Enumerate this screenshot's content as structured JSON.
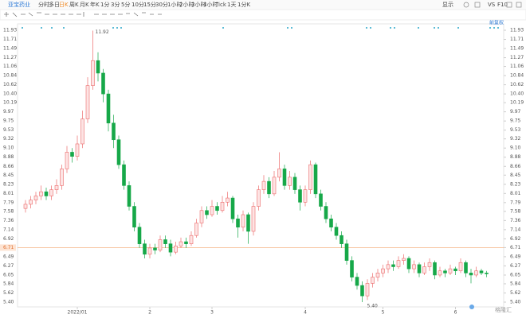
{
  "toolbar": {
    "symbol": "亚宝药业",
    "periods": [
      "分时",
      "多日",
      "日K",
      "周K",
      "月K",
      "年K",
      "1分",
      "3分",
      "5分",
      "10分",
      "15分",
      "30分",
      "1小时",
      "2小时",
      "3小时",
      "4小时",
      "Tick",
      "1天",
      "1分K"
    ],
    "right": [
      "显示",
      "VS",
      "F10"
    ],
    "adjust": "前复权",
    "logo": "格隆汇"
  },
  "chart_data": {
    "type": "candlestick",
    "categories": [
      null,
      null,
      null,
      null,
      null,
      null,
      null,
      null,
      null,
      null,
      "2022/01",
      null,
      null,
      null,
      null,
      null,
      null,
      null,
      null,
      null,
      null,
      null,
      null,
      null,
      "2",
      null,
      null,
      null,
      null,
      null,
      null,
      null,
      null,
      null,
      null,
      null,
      "3",
      null,
      null,
      null,
      null,
      null,
      null,
      null,
      null,
      null,
      null,
      null,
      null,
      null,
      null,
      null,
      null,
      null,
      "4",
      null,
      null,
      null,
      null,
      null,
      null,
      null,
      null,
      null,
      null,
      null,
      null,
      null,
      null,
      "5",
      null,
      null,
      null,
      null,
      null,
      null,
      null,
      null,
      null,
      null,
      null,
      null,
      null,
      "6",
      null,
      null,
      null,
      null,
      null,
      null
    ],
    "open": [
      7.65,
      7.75,
      7.85,
      7.95,
      8.05,
      7.95,
      8.1,
      8.2,
      8.6,
      9.0,
      8.9,
      9.2,
      9.8,
      10.6,
      11.2,
      10.9,
      10.4,
      9.7,
      9.3,
      8.7,
      8.2,
      7.7,
      7.2,
      6.8,
      6.55,
      6.7,
      6.65,
      6.9,
      6.8,
      6.6,
      6.75,
      6.85,
      6.8,
      7.0,
      7.3,
      7.6,
      7.5,
      7.7,
      7.6,
      7.8,
      7.9,
      7.4,
      7.2,
      7.5,
      7.1,
      7.7,
      8.1,
      8.3,
      8.0,
      8.4,
      8.6,
      8.2,
      8.4,
      8.1,
      7.8,
      8.1,
      8.7,
      8.0,
      7.7,
      7.4,
      7.2,
      7.0,
      6.8,
      6.4,
      6.0,
      5.8,
      5.55,
      5.85,
      6.0,
      6.1,
      6.2,
      6.3,
      6.25,
      6.4,
      6.45,
      6.2,
      6.3,
      6.1,
      6.25,
      6.35,
      6.05,
      6.15,
      6.1,
      6.2,
      6.15,
      6.35,
      6.1,
      6.05,
      6.15,
      6.1
    ],
    "high": [
      7.85,
      7.95,
      8.05,
      8.2,
      8.15,
      8.2,
      8.35,
      8.7,
      9.15,
      9.1,
      9.4,
      10.0,
      10.8,
      11.92,
      11.4,
      11.0,
      10.5,
      9.9,
      9.4,
      8.8,
      8.3,
      7.8,
      7.3,
      6.9,
      6.8,
      6.8,
      7.0,
      7.0,
      6.9,
      6.85,
      6.95,
      6.95,
      7.1,
      7.4,
      7.7,
      7.7,
      7.85,
      7.8,
      7.95,
      8.05,
      7.95,
      7.5,
      7.6,
      7.55,
      7.8,
      8.2,
      8.45,
      8.4,
      8.55,
      9.0,
      8.7,
      8.55,
      8.5,
      8.2,
      8.2,
      8.8,
      8.75,
      8.1,
      7.8,
      7.5,
      7.3,
      7.1,
      6.9,
      6.5,
      6.1,
      5.9,
      5.95,
      6.1,
      6.2,
      6.3,
      6.4,
      6.4,
      6.5,
      6.55,
      6.5,
      6.4,
      6.35,
      6.35,
      6.45,
      6.4,
      6.25,
      6.2,
      6.3,
      6.25,
      6.45,
      6.4,
      6.2,
      6.25,
      6.2,
      6.15
    ],
    "low": [
      7.55,
      7.65,
      7.75,
      7.85,
      7.85,
      7.85,
      8.0,
      8.1,
      8.5,
      8.75,
      8.8,
      9.1,
      9.7,
      10.5,
      10.7,
      10.2,
      9.5,
      9.1,
      8.6,
      8.1,
      7.6,
      7.1,
      6.7,
      6.45,
      6.45,
      6.55,
      6.6,
      6.7,
      6.5,
      6.55,
      6.7,
      6.7,
      6.75,
      6.95,
      7.2,
      7.4,
      7.45,
      7.5,
      7.55,
      7.7,
      7.3,
      6.95,
      7.1,
      6.8,
      7.0,
      7.6,
      8.0,
      7.9,
      7.95,
      8.3,
      8.1,
      8.1,
      8.0,
      7.6,
      7.7,
      8.0,
      7.9,
      7.6,
      7.3,
      7.1,
      6.9,
      6.7,
      6.3,
      5.9,
      5.7,
      5.4,
      5.45,
      5.75,
      5.9,
      6.0,
      6.1,
      6.15,
      6.2,
      6.3,
      6.1,
      6.1,
      6.0,
      6.05,
      6.15,
      5.95,
      6.0,
      6.0,
      6.05,
      6.05,
      6.1,
      6.0,
      5.85,
      6.0,
      6.05,
      6.0
    ],
    "close": [
      7.75,
      7.85,
      7.95,
      8.05,
      7.95,
      8.1,
      8.2,
      8.6,
      9.0,
      8.9,
      9.2,
      9.8,
      10.6,
      11.2,
      10.9,
      10.4,
      9.7,
      9.3,
      8.7,
      8.2,
      7.7,
      7.2,
      6.8,
      6.55,
      6.7,
      6.65,
      6.9,
      6.8,
      6.6,
      6.75,
      6.85,
      6.8,
      7.0,
      7.3,
      7.6,
      7.5,
      7.7,
      7.6,
      7.8,
      7.9,
      7.4,
      7.2,
      7.5,
      7.1,
      7.7,
      8.1,
      8.3,
      8.0,
      8.4,
      8.6,
      8.2,
      8.4,
      8.1,
      7.8,
      8.1,
      8.7,
      8.0,
      7.7,
      7.4,
      7.2,
      7.0,
      6.8,
      6.4,
      6.0,
      5.8,
      5.55,
      5.85,
      6.0,
      6.1,
      6.2,
      6.3,
      6.25,
      6.4,
      6.45,
      6.2,
      6.3,
      6.1,
      6.25,
      6.35,
      6.05,
      6.15,
      6.1,
      6.2,
      6.15,
      6.35,
      6.1,
      6.05,
      6.15,
      6.1,
      6.08
    ],
    "up_color": "#ec6b6b",
    "down_color": "#16a849",
    "max_label": "11.92",
    "min_label": "5.40",
    "price_line": 6.71,
    "price_line_color": "#f5a36c",
    "ylim": [
      5.4,
      11.93
    ],
    "yticks": [
      11.93,
      11.71,
      11.49,
      11.27,
      11.06,
      10.84,
      10.62,
      {
        "value": 10.4,
        "label": "10.40"
      },
      10.19,
      9.97,
      9.75,
      9.53,
      9.32,
      {
        "value": 9.1,
        "label": "9.10"
      },
      8.88,
      8.66,
      8.45,
      8.23,
      8.01,
      7.79,
      7.58,
      7.36,
      7.14,
      6.92,
      6.71,
      6.49,
      6.27,
      6.05,
      5.84,
      5.62,
      {
        "value": 5.4,
        "label": "5.40"
      }
    ]
  }
}
